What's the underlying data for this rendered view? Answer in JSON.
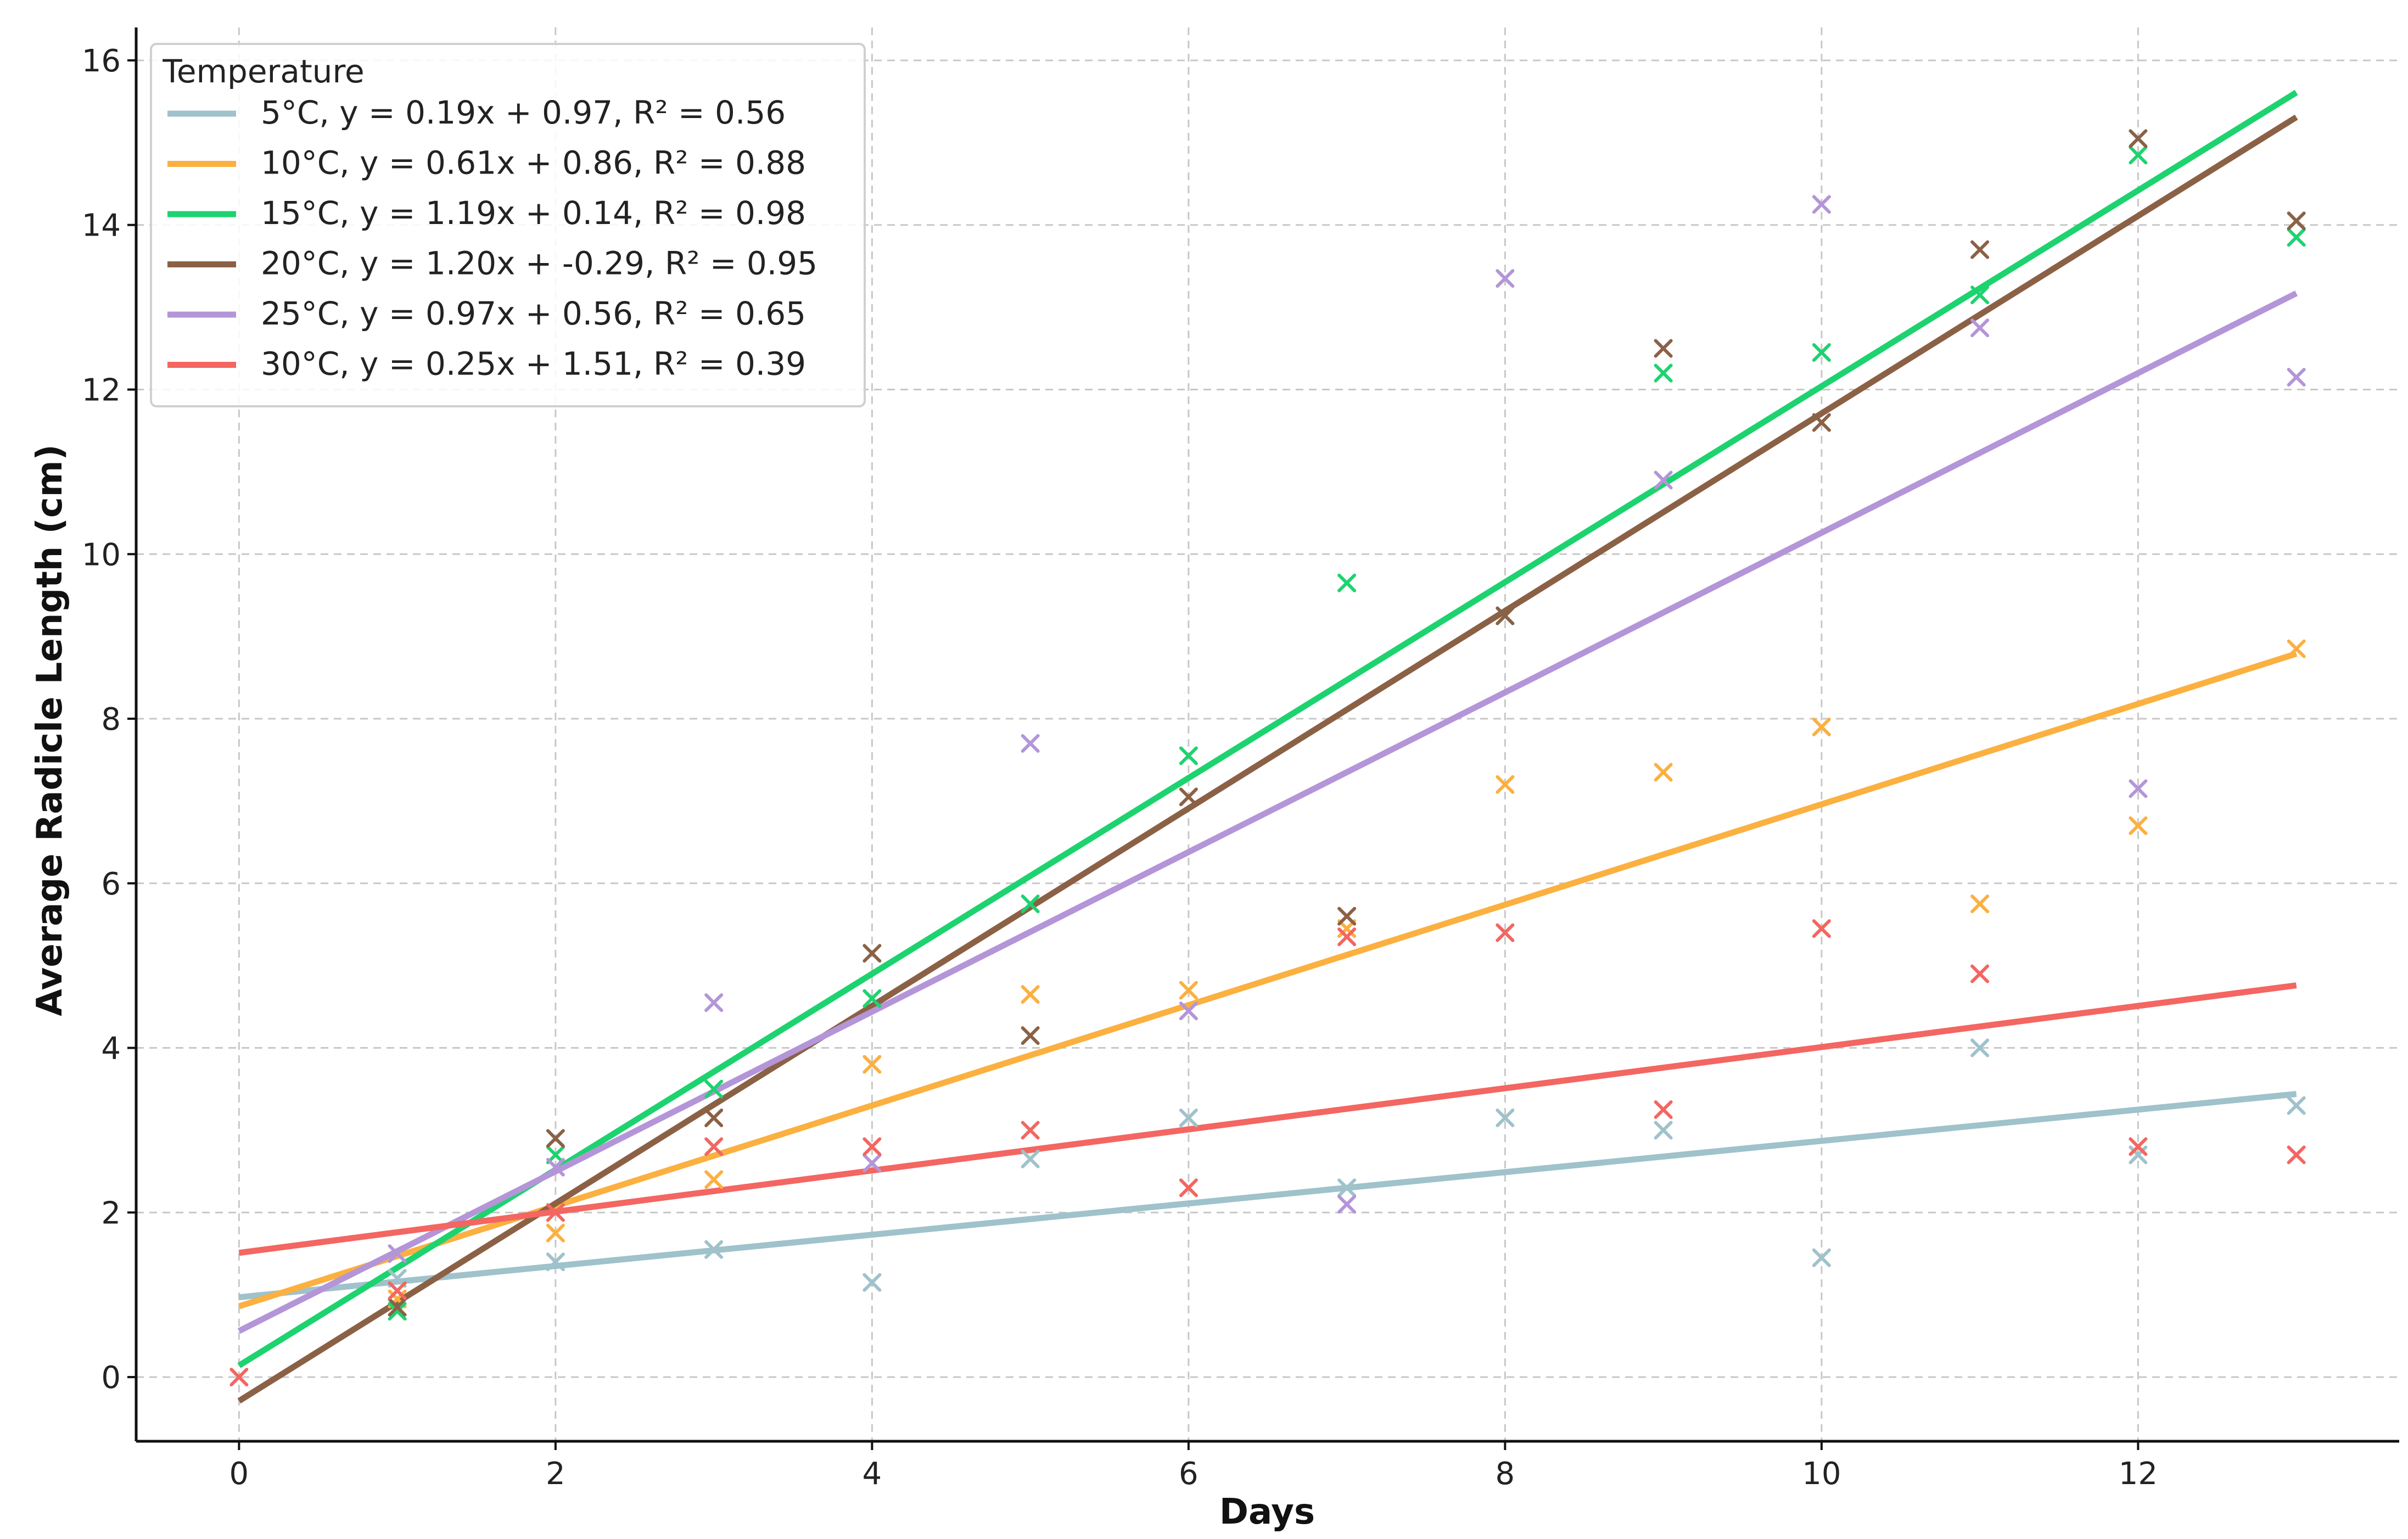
{
  "chart_data": {
    "type": "scatter",
    "title": "",
    "xlabel": "Days",
    "ylabel": "Average Radicle Length (cm)",
    "xlim": [
      -0.65,
      13.65
    ],
    "ylim": [
      -0.78,
      16.4
    ],
    "xticks": [
      0,
      2,
      4,
      6,
      8,
      10,
      12
    ],
    "yticks": [
      0,
      2,
      4,
      6,
      8,
      10,
      12,
      14,
      16
    ],
    "grid": true,
    "legend_title": "Temperature",
    "legend_position": "top-left",
    "x": [
      0,
      1,
      2,
      3,
      4,
      5,
      6,
      7,
      8,
      9,
      10,
      11,
      12,
      13
    ],
    "series": [
      {
        "name": "5°C",
        "color": "#9fc2cb",
        "fit_label": "5°C, y = 0.19x + 0.97, R² = 0.56",
        "slope": 0.19,
        "intercept": 0.97,
        "points": [
          [
            1,
            1.2
          ],
          [
            2,
            1.4
          ],
          [
            3,
            1.55
          ],
          [
            4,
            1.15
          ],
          [
            5,
            2.65
          ],
          [
            6,
            3.15
          ],
          [
            7,
            2.3
          ],
          [
            8,
            3.15
          ],
          [
            9,
            3.0
          ],
          [
            10,
            1.45
          ],
          [
            11,
            4.0
          ],
          [
            12,
            2.7
          ],
          [
            13,
            3.3
          ]
        ]
      },
      {
        "name": "10°C",
        "color": "#fbb040",
        "fit_label": "10°C, y = 0.61x + 0.86, R² = 0.88",
        "slope": 0.61,
        "intercept": 0.86,
        "points": [
          [
            1,
            0.95
          ],
          [
            2,
            1.75
          ],
          [
            3,
            2.4
          ],
          [
            4,
            3.8
          ],
          [
            5,
            4.65
          ],
          [
            6,
            4.7
          ],
          [
            7,
            5.45
          ],
          [
            8,
            7.2
          ],
          [
            9,
            7.35
          ],
          [
            10,
            7.9
          ],
          [
            11,
            5.75
          ],
          [
            12,
            6.7
          ],
          [
            13,
            8.85
          ]
        ]
      },
      {
        "name": "15°C",
        "color": "#1dd36f",
        "fit_label": "15°C, y = 1.19x + 0.14, R² = 0.98",
        "slope": 1.19,
        "intercept": 0.14,
        "points": [
          [
            1,
            0.8
          ],
          [
            2,
            2.7
          ],
          [
            3,
            3.5
          ],
          [
            4,
            4.6
          ],
          [
            5,
            5.75
          ],
          [
            6,
            7.55
          ],
          [
            7,
            9.65
          ],
          [
            8,
            9.25
          ],
          [
            9,
            12.2
          ],
          [
            10,
            12.45
          ],
          [
            11,
            13.15
          ],
          [
            12,
            14.85
          ],
          [
            13,
            13.85
          ]
        ]
      },
      {
        "name": "20°C",
        "color": "#8b6146",
        "fit_label": "20°C, y = 1.20x + -0.29, R² = 0.95",
        "slope": 1.2,
        "intercept": -0.29,
        "points": [
          [
            1,
            0.85
          ],
          [
            2,
            2.9
          ],
          [
            3,
            3.15
          ],
          [
            4,
            5.15
          ],
          [
            5,
            4.15
          ],
          [
            6,
            7.05
          ],
          [
            7,
            5.6
          ],
          [
            8,
            9.25
          ],
          [
            9,
            12.5
          ],
          [
            10,
            11.6
          ],
          [
            11,
            13.7
          ],
          [
            12,
            15.05
          ],
          [
            13,
            14.05
          ]
        ]
      },
      {
        "name": "25°C",
        "color": "#b495d8",
        "fit_label": "25°C, y = 0.97x + 0.56, R² = 0.65",
        "slope": 0.97,
        "intercept": 0.56,
        "points": [
          [
            1,
            1.5
          ],
          [
            2,
            2.55
          ],
          [
            3,
            4.55
          ],
          [
            4,
            2.6
          ],
          [
            5,
            7.7
          ],
          [
            6,
            4.45
          ],
          [
            7,
            2.1
          ],
          [
            8,
            13.35
          ],
          [
            9,
            10.9
          ],
          [
            10,
            14.25
          ],
          [
            11,
            12.75
          ],
          [
            12,
            7.15
          ],
          [
            13,
            12.15
          ]
        ]
      },
      {
        "name": "30°C",
        "color": "#f36661",
        "fit_label": "30°C, y = 0.25x + 1.51, R² = 0.39",
        "slope": 0.25,
        "intercept": 1.51,
        "points": [
          [
            0,
            0.0
          ],
          [
            1,
            1.05
          ],
          [
            2,
            2.0
          ],
          [
            3,
            2.8
          ],
          [
            4,
            2.8
          ],
          [
            5,
            3.0
          ],
          [
            6,
            2.3
          ],
          [
            7,
            5.35
          ],
          [
            8,
            5.4
          ],
          [
            9,
            3.25
          ],
          [
            10,
            5.45
          ],
          [
            11,
            4.9
          ],
          [
            12,
            2.8
          ],
          [
            13,
            2.7
          ]
        ]
      }
    ]
  }
}
